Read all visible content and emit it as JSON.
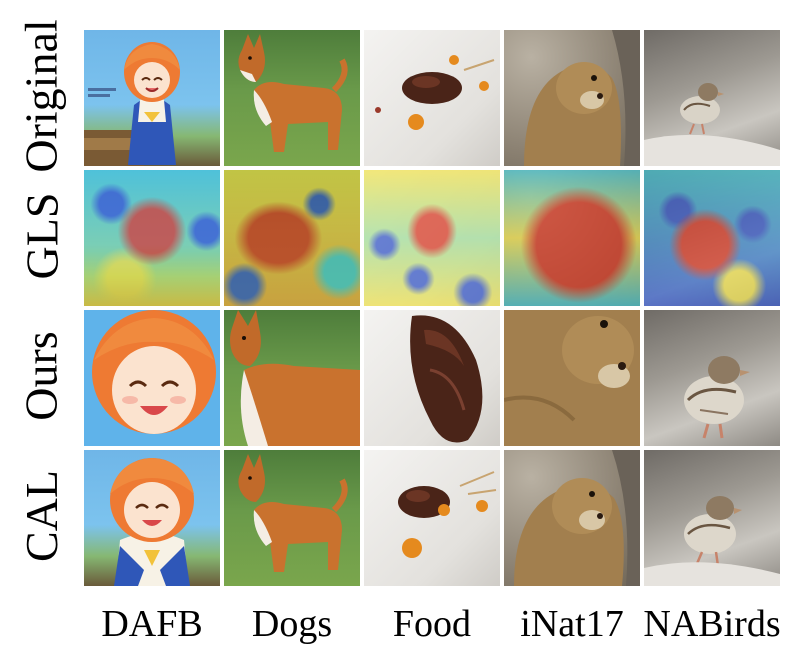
{
  "rows": [
    "Original",
    "GLS",
    "Ours",
    "CAL"
  ],
  "columns": [
    "DAFB",
    "Dogs",
    "Food",
    "iNat17",
    "NABirds"
  ],
  "colors": {
    "heat_red": "#d9341f",
    "heat_yellow": "#f2e34a",
    "heat_cyan": "#42c6d4",
    "heat_blue": "#2f52c9"
  }
}
